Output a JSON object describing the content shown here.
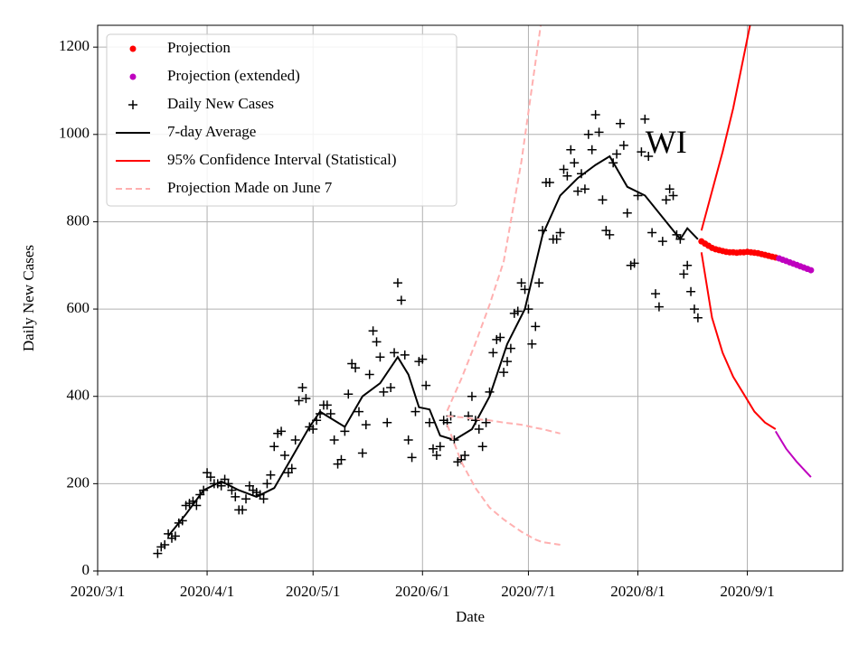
{
  "chart_data": {
    "type": "line",
    "x_label": "Date",
    "y_label": "Daily New Cases",
    "annotation": {
      "text": "WI",
      "x": "2020-08-09",
      "y": 975
    },
    "xlim": [
      "2020-03-01",
      "2020-09-28"
    ],
    "ylim": [
      0,
      1250
    ],
    "xticks": [
      {
        "value": "2020-03-01",
        "label": "2020/3/1"
      },
      {
        "value": "2020-04-01",
        "label": "2020/4/1"
      },
      {
        "value": "2020-05-01",
        "label": "2020/5/1"
      },
      {
        "value": "2020-06-01",
        "label": "2020/6/1"
      },
      {
        "value": "2020-07-01",
        "label": "2020/7/1"
      },
      {
        "value": "2020-08-01",
        "label": "2020/8/1"
      },
      {
        "value": "2020-09-01",
        "label": "2020/9/1"
      }
    ],
    "yticks": [
      0,
      200,
      400,
      600,
      800,
      1000,
      1200
    ],
    "grid": true,
    "legend": "upper left",
    "series": [
      {
        "name": "Projection",
        "style": "dot",
        "color": "#ff0000",
        "x": [
          "2020-08-19",
          "2020-08-20",
          "2020-08-21",
          "2020-08-22",
          "2020-08-23",
          "2020-08-24",
          "2020-08-25",
          "2020-08-26",
          "2020-08-27",
          "2020-08-28",
          "2020-08-29",
          "2020-08-30",
          "2020-08-31",
          "2020-09-01",
          "2020-09-02",
          "2020-09-03",
          "2020-09-04",
          "2020-09-05",
          "2020-09-06",
          "2020-09-07",
          "2020-09-08",
          "2020-09-09"
        ],
        "values": [
          755,
          750,
          745,
          740,
          737,
          735,
          733,
          731,
          730,
          730,
          729,
          730,
          730,
          731,
          730,
          729,
          728,
          726,
          724,
          722,
          720,
          718
        ]
      },
      {
        "name": "Projection (extended)",
        "style": "dot",
        "color": "#bf00bf",
        "x": [
          "2020-09-10",
          "2020-09-11",
          "2020-09-12",
          "2020-09-13",
          "2020-09-14",
          "2020-09-15",
          "2020-09-16",
          "2020-09-17",
          "2020-09-18",
          "2020-09-19"
        ],
        "values": [
          716,
          713,
          710,
          707,
          704,
          701,
          698,
          695,
          692,
          689
        ]
      },
      {
        "name": "Daily New Cases",
        "style": "plus",
        "color": "#000000",
        "x": [
          "2020-03-18",
          "2020-03-19",
          "2020-03-20",
          "2020-03-21",
          "2020-03-22",
          "2020-03-23",
          "2020-03-24",
          "2020-03-25",
          "2020-03-26",
          "2020-03-27",
          "2020-03-28",
          "2020-03-29",
          "2020-03-30",
          "2020-03-31",
          "2020-04-01",
          "2020-04-02",
          "2020-04-03",
          "2020-04-04",
          "2020-04-05",
          "2020-04-06",
          "2020-04-07",
          "2020-04-08",
          "2020-04-09",
          "2020-04-10",
          "2020-04-11",
          "2020-04-12",
          "2020-04-13",
          "2020-04-14",
          "2020-04-15",
          "2020-04-16",
          "2020-04-17",
          "2020-04-18",
          "2020-04-19",
          "2020-04-20",
          "2020-04-21",
          "2020-04-22",
          "2020-04-23",
          "2020-04-24",
          "2020-04-25",
          "2020-04-26",
          "2020-04-27",
          "2020-04-28",
          "2020-04-29",
          "2020-04-30",
          "2020-05-01",
          "2020-05-02",
          "2020-05-03",
          "2020-05-04",
          "2020-05-05",
          "2020-05-06",
          "2020-05-07",
          "2020-05-08",
          "2020-05-09",
          "2020-05-10",
          "2020-05-11",
          "2020-05-12",
          "2020-05-13",
          "2020-05-14",
          "2020-05-15",
          "2020-05-16",
          "2020-05-17",
          "2020-05-18",
          "2020-05-19",
          "2020-05-20",
          "2020-05-21",
          "2020-05-22",
          "2020-05-23",
          "2020-05-24",
          "2020-05-25",
          "2020-05-26",
          "2020-05-27",
          "2020-05-28",
          "2020-05-29",
          "2020-05-30",
          "2020-05-31",
          "2020-06-01",
          "2020-06-02",
          "2020-06-03",
          "2020-06-04",
          "2020-06-05",
          "2020-06-06",
          "2020-06-07",
          "2020-06-08",
          "2020-06-09",
          "2020-06-10",
          "2020-06-11",
          "2020-06-12",
          "2020-06-13",
          "2020-06-14",
          "2020-06-15",
          "2020-06-16",
          "2020-06-17",
          "2020-06-18",
          "2020-06-19",
          "2020-06-20",
          "2020-06-21",
          "2020-06-22",
          "2020-06-23",
          "2020-06-24",
          "2020-06-25",
          "2020-06-26",
          "2020-06-27",
          "2020-06-28",
          "2020-06-29",
          "2020-06-30",
          "2020-07-01",
          "2020-07-02",
          "2020-07-03",
          "2020-07-04",
          "2020-07-05",
          "2020-07-06",
          "2020-07-07",
          "2020-07-08",
          "2020-07-09",
          "2020-07-10",
          "2020-07-11",
          "2020-07-12",
          "2020-07-13",
          "2020-07-14",
          "2020-07-15",
          "2020-07-16",
          "2020-07-17",
          "2020-07-18",
          "2020-07-19",
          "2020-07-20",
          "2020-07-21",
          "2020-07-22",
          "2020-07-23",
          "2020-07-24",
          "2020-07-25",
          "2020-07-26",
          "2020-07-27",
          "2020-07-28",
          "2020-07-29",
          "2020-07-30",
          "2020-07-31",
          "2020-08-01",
          "2020-08-02",
          "2020-08-03",
          "2020-08-04",
          "2020-08-05",
          "2020-08-06",
          "2020-08-07",
          "2020-08-08",
          "2020-08-09",
          "2020-08-10",
          "2020-08-11",
          "2020-08-12",
          "2020-08-13",
          "2020-08-14",
          "2020-08-15",
          "2020-08-16",
          "2020-08-17",
          "2020-08-18"
        ],
        "values": [
          40,
          55,
          60,
          85,
          75,
          80,
          110,
          115,
          150,
          155,
          160,
          150,
          175,
          185,
          225,
          215,
          200,
          200,
          195,
          210,
          200,
          185,
          170,
          140,
          140,
          165,
          195,
          185,
          180,
          175,
          165,
          200,
          220,
          285,
          315,
          320,
          265,
          225,
          235,
          300,
          390,
          420,
          395,
          330,
          325,
          345,
          360,
          380,
          380,
          360,
          300,
          245,
          255,
          320,
          405,
          475,
          465,
          365,
          270,
          335,
          450,
          550,
          525,
          490,
          410,
          340,
          420,
          500,
          660,
          620,
          495,
          300,
          260,
          365,
          480,
          485,
          425,
          340,
          280,
          265,
          285,
          345,
          340,
          355,
          300,
          250,
          255,
          265,
          355,
          400,
          345,
          325,
          285,
          340,
          410,
          500,
          530,
          535,
          455,
          480,
          510,
          590,
          595,
          660,
          645,
          600,
          520,
          560,
          660,
          780,
          890,
          890,
          760,
          760,
          775,
          920,
          905,
          965,
          935,
          870,
          910,
          875,
          1000,
          965,
          1045,
          1005,
          850,
          780,
          770,
          935,
          955,
          1025,
          975,
          820,
          700,
          705,
          860,
          960,
          1035,
          950,
          775,
          635,
          605,
          755,
          850,
          875,
          860,
          770,
          760,
          680,
          700,
          640,
          600,
          580
        ]
      },
      {
        "name": "7-day Average",
        "style": "line",
        "color": "#000000",
        "x": [
          "2020-03-21",
          "2020-03-26",
          "2020-03-31",
          "2020-04-05",
          "2020-04-10",
          "2020-04-15",
          "2020-04-20",
          "2020-04-25",
          "2020-04-30",
          "2020-05-03",
          "2020-05-05",
          "2020-05-10",
          "2020-05-15",
          "2020-05-20",
          "2020-05-25",
          "2020-05-28",
          "2020-05-31",
          "2020-06-03",
          "2020-06-06",
          "2020-06-10",
          "2020-06-15",
          "2020-06-20",
          "2020-06-25",
          "2020-06-30",
          "2020-07-05",
          "2020-07-10",
          "2020-07-15",
          "2020-07-20",
          "2020-07-24",
          "2020-07-29",
          "2020-08-03",
          "2020-08-09",
          "2020-08-13",
          "2020-08-15",
          "2020-08-18"
        ],
        "values": [
          80,
          130,
          185,
          205,
          185,
          170,
          190,
          260,
          330,
          365,
          355,
          330,
          400,
          430,
          490,
          450,
          375,
          370,
          310,
          300,
          325,
          400,
          520,
          600,
          770,
          860,
          900,
          930,
          950,
          880,
          860,
          800,
          760,
          785,
          760
        ]
      },
      {
        "name": "95% Confidence Interval (Statistical)",
        "style": "interval",
        "color": "#ff0000",
        "x": [
          "2020-08-19",
          "2020-08-22",
          "2020-08-25",
          "2020-08-28",
          "2020-08-31",
          "2020-09-03",
          "2020-09-06",
          "2020-09-09"
        ],
        "upper": [
          780,
          870,
          960,
          1060,
          1180,
          1300,
          null,
          null
        ],
        "lower": [
          730,
          580,
          500,
          445,
          405,
          365,
          340,
          325
        ],
        "extended": {
          "color": "#bf00bf",
          "x": [
            "2020-09-09",
            "2020-09-12",
            "2020-09-15",
            "2020-09-19"
          ],
          "lower": [
            320,
            280,
            250,
            215
          ]
        }
      },
      {
        "name": "Projection Made on June 7",
        "style": "dashed-interval",
        "color": "#ffb0b0",
        "x": [
          "2020-06-08",
          "2020-06-12",
          "2020-06-16",
          "2020-06-20",
          "2020-06-24",
          "2020-06-29",
          "2020-07-03",
          "2020-07-05",
          "2020-07-10"
        ],
        "upper": [
          367,
          440,
          522,
          610,
          709,
          937,
          1165,
          1280,
          null
        ],
        "values": [
          355,
          352,
          348,
          345,
          340,
          335,
          328,
          325,
          315
        ],
        "lower": [
          335,
          250,
          190,
          145,
          118,
          90,
          72,
          66,
          60
        ]
      }
    ]
  }
}
